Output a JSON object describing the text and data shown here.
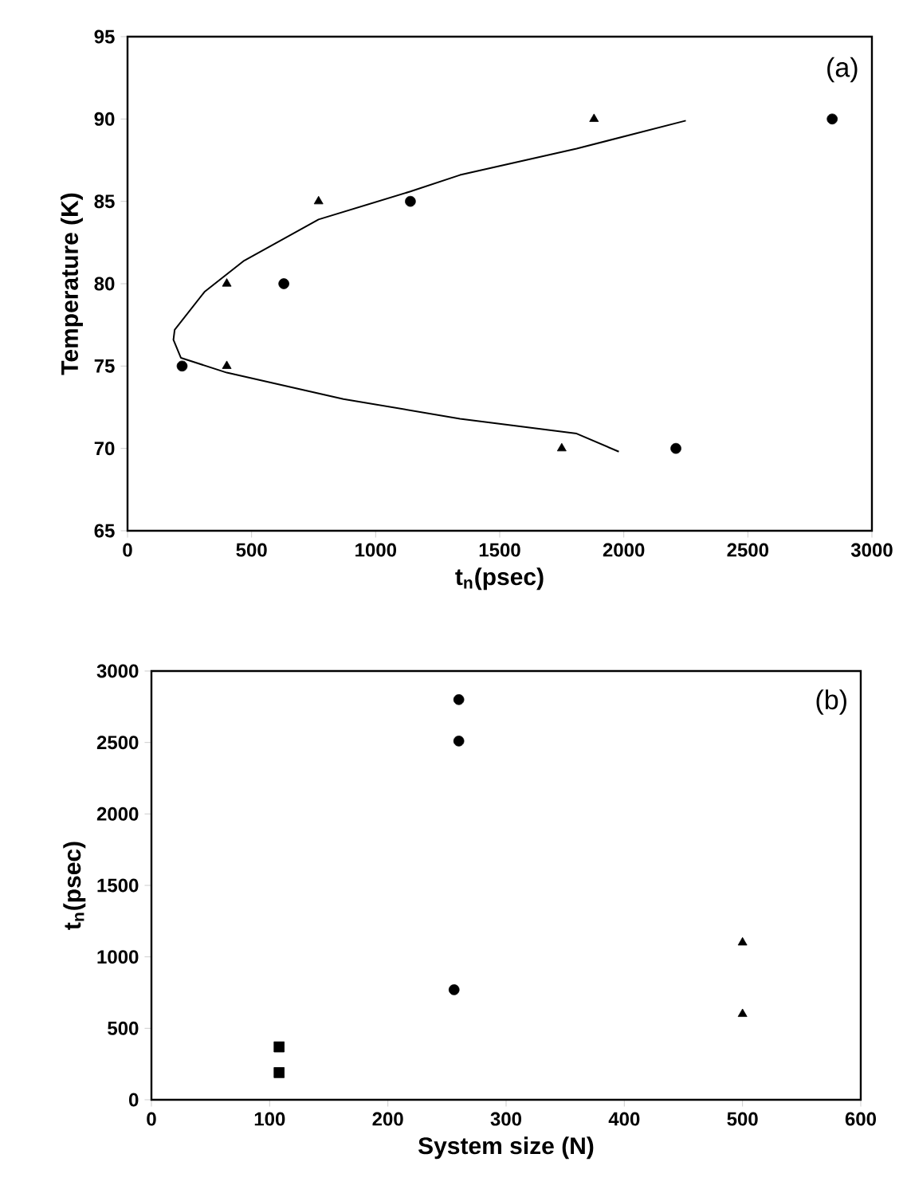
{
  "chart_data": [
    {
      "type": "scatter",
      "xlabel": "t$_{n}$(psec)",
      "ylabel": "Temperature (K)",
      "annotations": [
        "(a)"
      ],
      "xlim": [
        0,
        3000
      ],
      "ylim": [
        65,
        95
      ],
      "xticks": [
        0,
        500,
        1000,
        1500,
        2000,
        2500,
        3000
      ],
      "yticks": [
        65,
        70,
        75,
        80,
        85,
        90,
        95
      ],
      "series": [
        {
          "marker": "circle",
          "color": "#000000",
          "x": [
            220,
            630,
            1140,
            2210,
            2840
          ],
          "values": [
            75,
            80,
            85,
            70,
            90
          ]
        },
        {
          "marker": "triangle",
          "color": "#000000",
          "x": [
            400,
            400,
            770,
            1750,
            1880
          ],
          "values": [
            80,
            75,
            85,
            70,
            90
          ]
        },
        {
          "type": "line",
          "marker": "none",
          "color": "#000000",
          "x": [
            2250,
            1810,
            1340,
            1140,
            770,
            470,
            310,
            190,
            185,
            215,
            400,
            870,
            1340,
            1810,
            1980
          ],
          "values": [
            89.9,
            88.2,
            86.6,
            85.6,
            83.9,
            81.4,
            79.5,
            77.2,
            76.6,
            75.5,
            74.6,
            73.0,
            71.8,
            70.9,
            69.8
          ]
        }
      ]
    },
    {
      "type": "scatter",
      "xlabel": "System size (N)",
      "ylabel": "t$_{n}$(psec)",
      "annotations": [
        "(b)"
      ],
      "xlim": [
        0,
        600
      ],
      "ylim": [
        0,
        3000
      ],
      "xticks": [
        0,
        100,
        200,
        300,
        400,
        500,
        600
      ],
      "yticks": [
        0,
        500,
        1000,
        1500,
        2000,
        2500,
        3000
      ],
      "series": [
        {
          "marker": "circle",
          "color": "#000000",
          "x": [
            260,
            260,
            256
          ],
          "values": [
            2800,
            2510,
            770
          ]
        },
        {
          "marker": "square",
          "color": "#000000",
          "x": [
            108,
            108
          ],
          "values": [
            370,
            190
          ]
        },
        {
          "marker": "triangle",
          "color": "#000000",
          "x": [
            500,
            500
          ],
          "values": [
            1100,
            600
          ]
        }
      ]
    }
  ]
}
